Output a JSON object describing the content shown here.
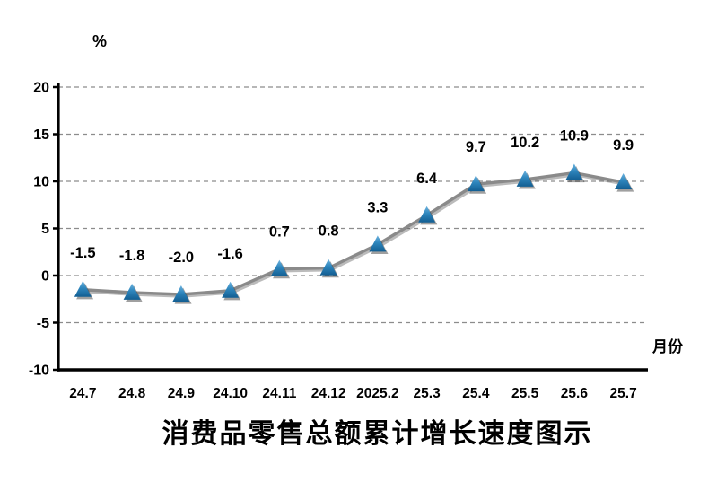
{
  "title": "消费品零售总额累计增长速度图示",
  "y_unit_label": "%",
  "x_axis_label": "月份",
  "chart_data": {
    "type": "line",
    "title": "消费品零售总额累计增长速度图示",
    "categories": [
      "24.7",
      "24.8",
      "24.9",
      "24.10",
      "24.11",
      "24.12",
      "2025.2",
      "25.3",
      "25.4",
      "25.5",
      "25.6",
      "25.7"
    ],
    "values": [
      -1.5,
      -1.8,
      -2.0,
      -1.6,
      0.7,
      0.8,
      3.3,
      6.4,
      9.7,
      10.2,
      10.9,
      9.9
    ],
    "value_labels": [
      "-1.5",
      "-1.8",
      "-2.0",
      "-1.6",
      "0.7",
      "0.8",
      "3.3",
      "6.4",
      "9.7",
      "10.2",
      "10.9",
      "9.9"
    ],
    "xlabel": "月份",
    "ylabel": "%",
    "ylim": [
      -10,
      20
    ],
    "yticks": [
      20,
      15,
      10,
      5,
      0,
      -5,
      -10
    ],
    "grid": "horizontal-dashed",
    "legend": "none",
    "marker": "triangle",
    "colors": {
      "line": "#8A8A8A",
      "line_shadow": "rgba(60,60,60,0.35)",
      "marker_top": "#6FB4DF",
      "marker_mid": "#2E86BD",
      "marker_bottom": "#125E92",
      "marker_shadow": "rgba(45,45,45,0.45)",
      "grid": "#8C8C8C",
      "axis": "#000000",
      "text": "#000000"
    }
  }
}
